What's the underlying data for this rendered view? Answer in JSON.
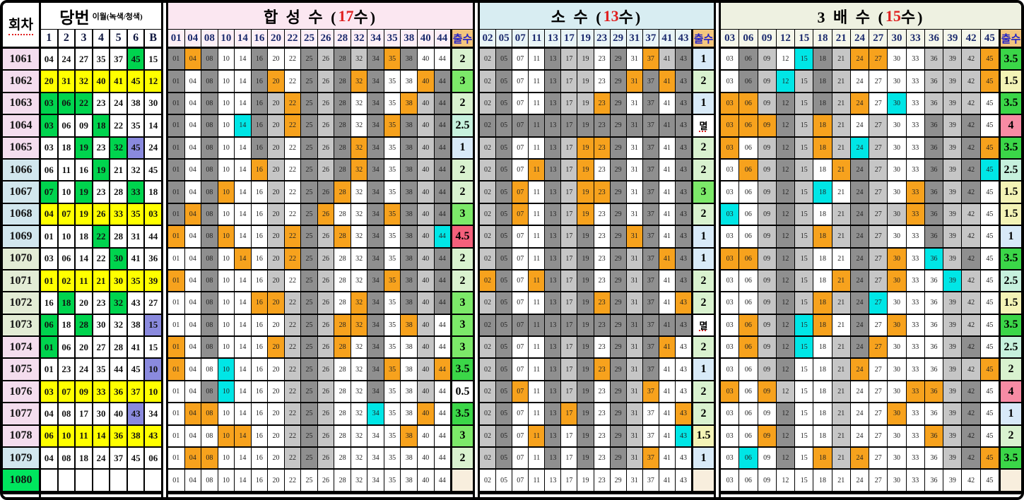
{
  "round_label": "회차",
  "dangbun": {
    "title": "당번",
    "subtitle": "이월(녹색/청색)",
    "columns": [
      "1",
      "2",
      "3",
      "4",
      "5",
      "6",
      "B"
    ]
  },
  "sections": [
    {
      "key": "composite",
      "title_pre": "합 성 수 (",
      "title_count": "17",
      "title_post": "수)",
      "title_bg": "#fbe7f1",
      "head_bg": "#fdeff6",
      "out_label": "출수",
      "columns": [
        "01",
        "04",
        "08",
        "10",
        "14",
        "16",
        "20",
        "22",
        "25",
        "26",
        "28",
        "32",
        "34",
        "35",
        "38",
        "40",
        "44"
      ]
    },
    {
      "key": "prime",
      "title_pre": "소    수 (",
      "title_count": "13",
      "title_post": "수)",
      "title_bg": "#d8edf2",
      "head_bg": "#e9f5f7",
      "out_label": "출수",
      "columns": [
        "02",
        "05",
        "07",
        "11",
        "13",
        "17",
        "19",
        "23",
        "29",
        "31",
        "37",
        "41",
        "43"
      ]
    },
    {
      "key": "triple",
      "title_pre": "3 배 수 (",
      "title_count": "15",
      "title_post": "수)",
      "title_bg": "#eef1e1",
      "head_bg": "#f5f7ea",
      "out_label": "출수",
      "columns": [
        "03",
        "06",
        "09",
        "12",
        "15",
        "18",
        "21",
        "24",
        "27",
        "30",
        "33",
        "36",
        "39",
        "42",
        "45"
      ]
    }
  ],
  "palette": {
    "header_text": "#1c2b6e",
    "out_head_bg": "#f3c67e",
    "out_head_text": "#2020c8",
    "cell": {
      "W": "#ffffff",
      "G": "#8f8f8f",
      "L": "#c6c6c6",
      "O": "#f7a21d",
      "C": "#00e6e6"
    },
    "winning": {
      "W": "#ffffff",
      "Y": "#ffff00",
      "G": "#00d44e",
      "B": "#8a8ade"
    },
    "round": {
      "p": "#f4ddee",
      "b": "#d2e7ee",
      "g": "#e3ecd5",
      "hl": "#00e65e"
    },
    "out": {
      "0.5": "#ffffff",
      "1": "#d8eaf8",
      "1.5": "#f3f3b6",
      "2": "#d9f2cf",
      "2.5": "#c6f1dd",
      "3": "#7ce969",
      "3.5": "#3bd648",
      "4": "#f78ba4",
      "4.5": "#f4607b",
      "멸": "#ffffff",
      "": "#f8eedd"
    }
  },
  "rows": [
    {
      "round": "1061",
      "round_color": "p",
      "winning": [
        "04",
        "24",
        "27",
        "35",
        "37",
        "45",
        "15"
      ],
      "winning_colors": "WWWWWGW",
      "cells": [
        "GOGWWGWWGLGLGOGWW",
        "LGWWGLLWGWOLG",
        "WGLWCGLOOWWLLLO"
      ],
      "outs": [
        "2",
        "1",
        "3.5"
      ]
    },
    {
      "round": "1062",
      "round_color": "p",
      "winning": [
        "20",
        "31",
        "32",
        "40",
        "41",
        "45",
        "12"
      ],
      "winning_colors": "YYYYYYY",
      "cells": [
        "GWGWWGOWGLGOGWWOG",
        "LGWWGLLWGOGOG",
        "WGLCLGLWWWWLLLO"
      ],
      "outs": [
        "3",
        "2",
        "1.5"
      ]
    },
    {
      "round": "1063",
      "round_color": "p",
      "winning": [
        "03",
        "06",
        "22",
        "23",
        "24",
        "38",
        "30"
      ],
      "winning_colors": "GGGWWWW",
      "cells": [
        "GWGWWGLOGLGWGWOLG",
        "LGWWGLLOGWGWG",
        "OOLGLGLOWCWLLLW"
      ],
      "outs": [
        "2",
        "1",
        "3.5"
      ]
    },
    {
      "round": "1064",
      "round_color": "p",
      "winning": [
        "03",
        "06",
        "09",
        "18",
        "22",
        "35",
        "14"
      ],
      "winning_colors": "GWWGWWW",
      "cells": [
        "GWGWCGLOGLGWGOGLG",
        "GGGGGGGGGGGGG",
        "OOOGLOLWLWWGLGW"
      ],
      "outs": [
        "2.5",
        "멸",
        "4"
      ]
    },
    {
      "round": "1065",
      "round_color": "p",
      "winning": [
        "03",
        "18",
        "19",
        "23",
        "32",
        "45",
        "24"
      ],
      "winning_colors": "WWGWGBW",
      "cells": [
        "GWGWWGLWGLGOGWGLG",
        "LGWWGLOOGWGWG",
        "OWLGLOLCLWWGLGO"
      ],
      "outs": [
        "1",
        "2",
        "3.5"
      ]
    },
    {
      "round": "1066",
      "round_color": "b",
      "winning": [
        "06",
        "11",
        "16",
        "19",
        "21",
        "32",
        "45"
      ],
      "winning_colors": "WWWGWWW",
      "cells": [
        "GWGWWOLWGLGOGWGLG",
        "LGWOGLOWGWGWG",
        "WOLGLWOGLWWGLGC"
      ],
      "outs": [
        "2",
        "2",
        "2.5"
      ]
    },
    {
      "round": "1067",
      "round_color": "b",
      "winning": [
        "07",
        "10",
        "19",
        "23",
        "28",
        "33",
        "18"
      ],
      "winning_colors": "GWGWWGW",
      "cells": [
        "GWGOWWLWGGOWGWGLG",
        "LGOWGLOOGWGWG",
        "WWLGLCWGLWOGLGW"
      ],
      "outs": [
        "2",
        "3",
        "1.5"
      ]
    },
    {
      "round": "1068",
      "round_color": "b",
      "winning": [
        "04",
        "07",
        "19",
        "26",
        "33",
        "35",
        "03"
      ],
      "winning_colors": "YYYYYYY",
      "cells": [
        "GOGWWWLWGOWWGOGLG",
        "LGOWGLOWGWGWG",
        "CWLGLWLGLLOGLLW"
      ],
      "outs": [
        "3",
        "2",
        "1.5"
      ]
    },
    {
      "round": "1069",
      "round_color": "b",
      "winning": [
        "01",
        "10",
        "18",
        "22",
        "28",
        "31",
        "44"
      ],
      "winning_colors": "WWWGWWW",
      "cells": [
        "OWGOWWLOGLOWGWGLC",
        "LGWWGLGWGOGWG",
        "WWLGLOLGLWWGLLW"
      ],
      "outs": [
        "4.5",
        "1",
        "1"
      ]
    },
    {
      "round": "1070",
      "round_color": "g",
      "winning": [
        "03",
        "06",
        "14",
        "22",
        "30",
        "41",
        "36"
      ],
      "winning_colors": "WWWWGWW",
      "cells": [
        "WWGWOWLOGLWWGWGLG",
        "LGWWGLGWGLGOG",
        "OOLGLWWGLOWCLGW"
      ],
      "outs": [
        "2",
        "1",
        "3.5"
      ]
    },
    {
      "round": "1071",
      "round_color": "g",
      "winning": [
        "01",
        "02",
        "11",
        "21",
        "30",
        "35",
        "39"
      ],
      "winning_colors": "YYYYYYY",
      "cells": [
        "OWGWWWLWGLWWGOGLG",
        "OGWOGLGWGLGWG",
        "WWLGLWOGLOWWCLW"
      ],
      "outs": [
        "2",
        "2",
        "2.5"
      ]
    },
    {
      "round": "1072",
      "round_color": "g",
      "winning": [
        "16",
        "18",
        "20",
        "23",
        "32",
        "43",
        "27"
      ],
      "winning_colors": "WGWWGWW",
      "cells": [
        "WWGWWOOLGLWOGWGLG",
        "LGWWGLGOGLGWO",
        "WWLGLOLGCWWWLLW"
      ],
      "outs": [
        "3",
        "2",
        "1.5"
      ]
    },
    {
      "round": "1073",
      "round_color": "g",
      "winning": [
        "06",
        "18",
        "28",
        "30",
        "32",
        "38",
        "15"
      ],
      "winning_colors": "GWGWWWB",
      "cells": [
        "WWGWWWWLGLOOGWOLW",
        "GGGGGGGGGGGGG",
        "WOLGCOWGWOWWLLW"
      ],
      "outs": [
        "3",
        "멸",
        "3.5"
      ]
    },
    {
      "round": "1074",
      "round_color": "p",
      "winning": [
        "01",
        "06",
        "20",
        "27",
        "28",
        "41",
        "15"
      ],
      "winning_colors": "GWWWWWW",
      "cells": [
        "OWGWWWOLGLOWGWWLW",
        "LGWWGLGWGLGOW",
        "WOLGCWLGOWWWLGW"
      ],
      "outs": [
        "3",
        "2",
        "2.5"
      ]
    },
    {
      "round": "1075",
      "round_color": "p",
      "winning": [
        "01",
        "23",
        "24",
        "35",
        "44",
        "45",
        "10"
      ],
      "winning_colors": "WWWWWWB",
      "cells": [
        "OWWCWWWLGLWWGOWLO",
        "LGWWGLGOGLGWW",
        "WWLGWWLOWWWWLLO"
      ],
      "outs": [
        "3.5",
        "1",
        "2"
      ]
    },
    {
      "round": "1076",
      "round_color": "p",
      "winning": [
        "03",
        "07",
        "09",
        "33",
        "36",
        "37",
        "10"
      ],
      "winning_colors": "YYYYYYY",
      "cells": [
        "WWGCWWWLGLWWGWWLW",
        "LGOWGLGWGLOWW",
        "OWOLWWLWWWOOLGW"
      ],
      "outs": [
        "0.5",
        "2",
        "4"
      ]
    },
    {
      "round": "1077",
      "round_color": "p",
      "winning": [
        "04",
        "08",
        "17",
        "30",
        "40",
        "43",
        "34"
      ],
      "winning_colors": "WWWWWBW",
      "cells": [
        "WOOWWWWLGLWWCWWOW",
        "LGWWGOGWGLWWO",
        "WWWGWWLWWOWWLGW"
      ],
      "outs": [
        "3.5",
        "2",
        "1"
      ]
    },
    {
      "round": "1078",
      "round_color": "p",
      "winning": [
        "06",
        "10",
        "11",
        "14",
        "36",
        "38",
        "43"
      ],
      "winning_colors": "YYYYYYY",
      "cells": [
        "WWWOOWWLGLWWWWOWW",
        "LGWOGWGWGLWWC",
        "WWOGWWLWWWWOLGW"
      ],
      "outs": [
        "3",
        "1.5",
        "2"
      ]
    },
    {
      "round": "1079",
      "round_color": "b",
      "winning": [
        "04",
        "08",
        "18",
        "24",
        "37",
        "45",
        "06"
      ],
      "winning_colors": "WWWWWWW",
      "cells": [
        "WOOWWWWLGLWWWWWWW",
        "LGWWGWGWGLOWW",
        "WCWGWOLOWWWWLGO"
      ],
      "outs": [
        "2",
        "1",
        "3.5"
      ]
    },
    {
      "round": "1080",
      "round_color": "hl",
      "winning": [
        "",
        "",
        "",
        "",
        "",
        "",
        ""
      ],
      "winning_colors": "WWWWWWW",
      "cells": [
        "WWWWWWWWWWWWWWWWW",
        "WWWWWWWWWWWWW",
        "WWWWWWWWWWWWWWW"
      ],
      "outs": [
        "",
        "",
        ""
      ]
    }
  ]
}
